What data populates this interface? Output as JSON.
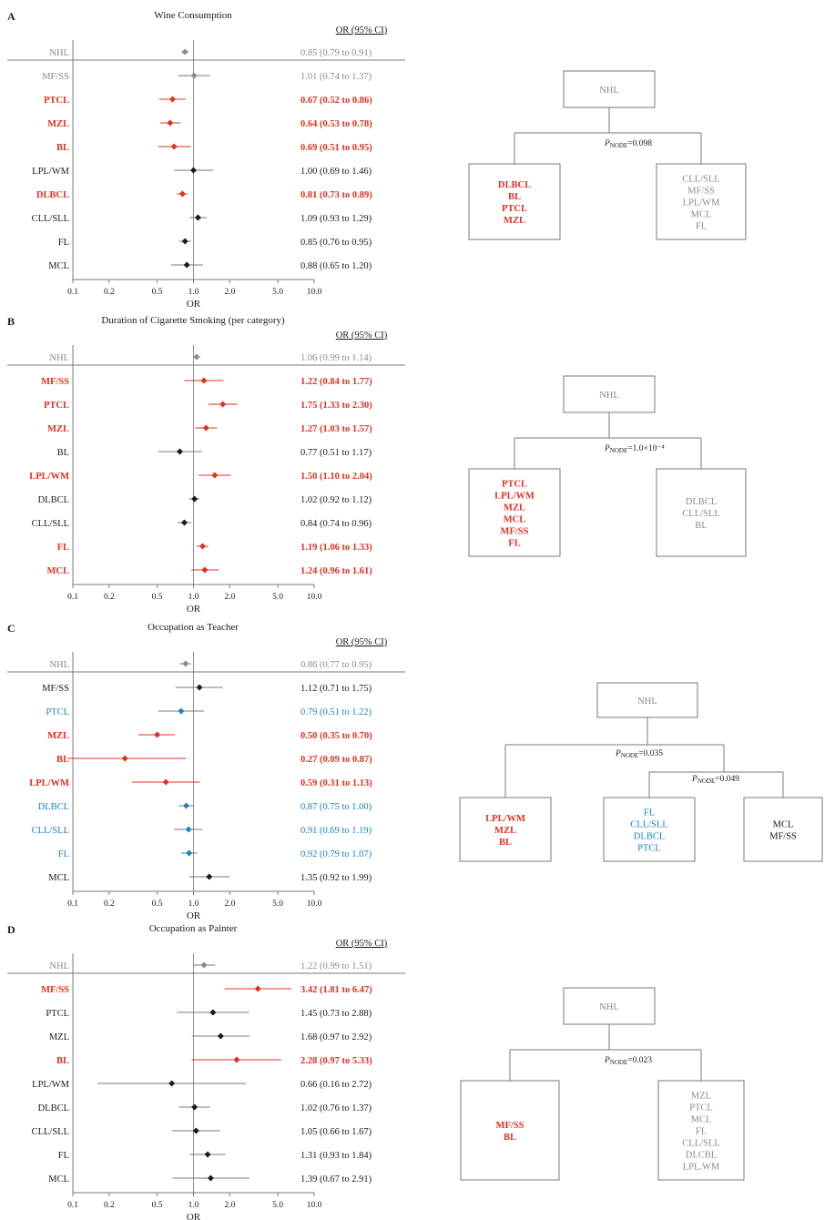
{
  "colors": {
    "red": "#e0301e",
    "blue": "#1a82c4",
    "black": "#1a1a1a",
    "gray": "#8a8a8a",
    "line": "#7a7a7a"
  },
  "axis": {
    "scale": "log",
    "ticks": [
      0.1,
      0.2,
      0.5,
      1.0,
      2.0,
      5.0,
      10.0
    ],
    "tick_labels": [
      "0.1",
      "0.2",
      "0.5",
      "1.0",
      "2.0",
      "5.0",
      "10.0"
    ],
    "xlabel": "OR"
  },
  "ci_header": "OR (95% CI)",
  "chart_data": [
    {
      "type": "forest",
      "panel": "A",
      "title": "Wine Consumption",
      "reference_line": 1.0,
      "rows": [
        {
          "label": "NHL",
          "or": 0.85,
          "lo": 0.79,
          "hi": 0.91,
          "ci_text": "0.85 (0.79 to 0.91)",
          "style": "gray"
        },
        {
          "label": "MF/SS",
          "or": 1.01,
          "lo": 0.74,
          "hi": 1.37,
          "ci_text": "1.01 (0.74 to 1.37)",
          "style": "gray"
        },
        {
          "label": "PTCL",
          "or": 0.67,
          "lo": 0.52,
          "hi": 0.86,
          "ci_text": "0.67 (0.52 to 0.86)",
          "style": "red"
        },
        {
          "label": "MZL",
          "or": 0.64,
          "lo": 0.53,
          "hi": 0.78,
          "ci_text": "0.64 (0.53 to 0.78)",
          "style": "red"
        },
        {
          "label": "BL",
          "or": 0.69,
          "lo": 0.51,
          "hi": 0.95,
          "ci_text": "0.69 (0.51 to 0.95)",
          "style": "red"
        },
        {
          "label": "LPL/WM",
          "or": 1.0,
          "lo": 0.69,
          "hi": 1.46,
          "ci_text": "1.00 (0.69 to 1.46)",
          "style": "black"
        },
        {
          "label": "DLBCL",
          "or": 0.81,
          "lo": 0.73,
          "hi": 0.89,
          "ci_text": "0.81 (0.73 to 0.89)",
          "style": "red"
        },
        {
          "label": "CLL/SLL",
          "or": 1.09,
          "lo": 0.93,
          "hi": 1.29,
          "ci_text": "1.09 (0.93 to 1.29)",
          "style": "black"
        },
        {
          "label": "FL",
          "or": 0.85,
          "lo": 0.76,
          "hi": 0.95,
          "ci_text": "0.85 (0.76 to 0.95)",
          "style": "black"
        },
        {
          "label": "MCL",
          "or": 0.88,
          "lo": 0.65,
          "hi": 1.2,
          "ci_text": "0.88 (0.65 to 1.20)",
          "style": "black"
        }
      ],
      "tree": {
        "root": "NHL",
        "splits": [
          {
            "parent": "NHL",
            "p_value": "=0.098"
          }
        ],
        "leaves": [
          {
            "items": [
              "DLBCL",
              "BL",
              "PTCL",
              "MZL"
            ],
            "style": "red"
          },
          {
            "items": [
              "CLL/SLL",
              "MF/SS",
              "LPL/WM",
              "MCL",
              "FL"
            ],
            "style": "gray"
          }
        ]
      }
    },
    {
      "type": "forest",
      "panel": "B",
      "title": "Duration of Cigarette Smoking (per category)",
      "reference_line": 1.0,
      "rows": [
        {
          "label": "NHL",
          "or": 1.06,
          "lo": 0.99,
          "hi": 1.14,
          "ci_text": "1.06 (0.99 to 1.14)",
          "style": "gray"
        },
        {
          "label": "MF/SS",
          "or": 1.22,
          "lo": 0.84,
          "hi": 1.77,
          "ci_text": "1.22 (0.84 to 1.77)",
          "style": "red"
        },
        {
          "label": "PTCL",
          "or": 1.75,
          "lo": 1.33,
          "hi": 2.3,
          "ci_text": "1.75 (1.33 to 2.30)",
          "style": "red"
        },
        {
          "label": "MZL",
          "or": 1.27,
          "lo": 1.03,
          "hi": 1.57,
          "ci_text": "1.27 (1.03 to 1.57)",
          "style": "red"
        },
        {
          "label": "BL",
          "or": 0.77,
          "lo": 0.51,
          "hi": 1.17,
          "ci_text": "0.77 (0.51 to 1.17)",
          "style": "black"
        },
        {
          "label": "LPL/WM",
          "or": 1.5,
          "lo": 1.1,
          "hi": 2.04,
          "ci_text": "1.50 (1.10 to 2.04)",
          "style": "red"
        },
        {
          "label": "DLBCL",
          "or": 1.02,
          "lo": 0.92,
          "hi": 1.12,
          "ci_text": "1.02 (0.92 to 1.12)",
          "style": "black"
        },
        {
          "label": "CLL/SLL",
          "or": 0.84,
          "lo": 0.74,
          "hi": 0.96,
          "ci_text": "0.84 (0.74 to 0.96)",
          "style": "black"
        },
        {
          "label": "FL",
          "or": 1.19,
          "lo": 1.06,
          "hi": 1.33,
          "ci_text": "1.19 (1.06 to 1.33)",
          "style": "red"
        },
        {
          "label": "MCL",
          "or": 1.24,
          "lo": 0.96,
          "hi": 1.61,
          "ci_text": "1.24 (0.96 to 1.61)",
          "style": "red"
        }
      ],
      "tree": {
        "root": "NHL",
        "splits": [
          {
            "parent": "NHL",
            "p_value": "=1.0×10⁻⁴"
          }
        ],
        "leaves": [
          {
            "items": [
              "PTCL",
              "LPL/WM",
              "MZL",
              "MCL",
              "MF/SS",
              "FL"
            ],
            "style": "red"
          },
          {
            "items": [
              "DLBCL",
              "CLL/SLL",
              "BL"
            ],
            "style": "gray"
          }
        ]
      }
    },
    {
      "type": "forest",
      "panel": "C",
      "title": "Occupation as Teacher",
      "reference_line": 1.0,
      "rows": [
        {
          "label": "NHL",
          "or": 0.86,
          "lo": 0.77,
          "hi": 0.95,
          "ci_text": "0.86 (0.77 to 0.95)",
          "style": "gray"
        },
        {
          "label": "MF/SS",
          "or": 1.12,
          "lo": 0.71,
          "hi": 1.75,
          "ci_text": "1.12 (0.71 to 1.75)",
          "style": "black"
        },
        {
          "label": "PTCL",
          "or": 0.79,
          "lo": 0.51,
          "hi": 1.22,
          "ci_text": "0.79 (0.51 to 1.22)",
          "style": "blue"
        },
        {
          "label": "MZL",
          "or": 0.5,
          "lo": 0.35,
          "hi": 0.7,
          "ci_text": "0.50 (0.35 to 0.70)",
          "style": "red"
        },
        {
          "label": "BL",
          "or": 0.27,
          "lo": 0.09,
          "hi": 0.87,
          "ci_text": "0.27 (0.09 to 0.87)",
          "style": "red"
        },
        {
          "label": "LPL/WM",
          "or": 0.59,
          "lo": 0.31,
          "hi": 1.13,
          "ci_text": "0.59 (0.31 to 1.13)",
          "style": "red"
        },
        {
          "label": "DLBCL",
          "or": 0.87,
          "lo": 0.75,
          "hi": 1.0,
          "ci_text": "0.87 (0.75 to 1.00)",
          "style": "blue"
        },
        {
          "label": "CLL/SLL",
          "or": 0.91,
          "lo": 0.69,
          "hi": 1.19,
          "ci_text": "0.91 (0.69 to 1.19)",
          "style": "blue"
        },
        {
          "label": "FL",
          "or": 0.92,
          "lo": 0.79,
          "hi": 1.07,
          "ci_text": "0.92 (0.79 to 1.07)",
          "style": "blue"
        },
        {
          "label": "MCL",
          "or": 1.35,
          "lo": 0.92,
          "hi": 1.99,
          "ci_text": "1.35 (0.92 to 1.99)",
          "style": "black"
        }
      ],
      "tree": {
        "root": "NHL",
        "splits": [
          {
            "parent": "NHL",
            "p_value": "=0.035"
          },
          {
            "parent": "right",
            "p_value": "=0.049"
          }
        ],
        "leaves": [
          {
            "items": [
              "LPL/WM",
              "MZL",
              "BL"
            ],
            "style": "red"
          },
          {
            "items": [
              "FL",
              "CLL/SLL",
              "DLBCL",
              "PTCL"
            ],
            "style": "blue"
          },
          {
            "items": [
              "MCL",
              "MF/SS"
            ],
            "style": "black"
          }
        ]
      }
    },
    {
      "type": "forest",
      "panel": "D",
      "title": "Occupation as Painter",
      "reference_line": 1.0,
      "rows": [
        {
          "label": "NHL",
          "or": 1.22,
          "lo": 0.99,
          "hi": 1.51,
          "ci_text": "1.22 (0.99 to 1.51)",
          "style": "gray"
        },
        {
          "label": "MF/SS",
          "or": 3.42,
          "lo": 1.81,
          "hi": 6.47,
          "ci_text": "3.42 (1.81 to 6.47)",
          "style": "red"
        },
        {
          "label": "PTCL",
          "or": 1.45,
          "lo": 0.73,
          "hi": 2.88,
          "ci_text": "1.45 (0.73 to 2.88)",
          "style": "black"
        },
        {
          "label": "MZL",
          "or": 1.68,
          "lo": 0.97,
          "hi": 2.92,
          "ci_text": "1.68 (0.97 to 2.92)",
          "style": "black"
        },
        {
          "label": "BL",
          "or": 2.28,
          "lo": 0.97,
          "hi": 5.33,
          "ci_text": "2.28 (0.97 to 5.33)",
          "style": "red"
        },
        {
          "label": "LPL/WM",
          "or": 0.66,
          "lo": 0.16,
          "hi": 2.72,
          "ci_text": "0.66 (0.16 to 2.72)",
          "style": "black"
        },
        {
          "label": "DLBCL",
          "or": 1.02,
          "lo": 0.76,
          "hi": 1.37,
          "ci_text": "1.02 (0.76 to 1.37)",
          "style": "black"
        },
        {
          "label": "CLL/SLL",
          "or": 1.05,
          "lo": 0.66,
          "hi": 1.67,
          "ci_text": "1.05 (0.66 to 1.67)",
          "style": "black"
        },
        {
          "label": "FL",
          "or": 1.31,
          "lo": 0.93,
          "hi": 1.84,
          "ci_text": "1.31 (0.93 to 1.84)",
          "style": "black"
        },
        {
          "label": "MCL",
          "or": 1.39,
          "lo": 0.67,
          "hi": 2.91,
          "ci_text": "1.39 (0.67 to 2.91)",
          "style": "black"
        }
      ],
      "tree": {
        "root": "NHL",
        "splits": [
          {
            "parent": "NHL",
            "p_value": "=0.023"
          }
        ],
        "leaves": [
          {
            "items": [
              "MF/SS",
              "BL"
            ],
            "style": "red"
          },
          {
            "items": [
              "MZL",
              "PTCL",
              "MCL",
              "FL",
              "CLL/SLL",
              "DLCBL",
              "LPL.WM"
            ],
            "style": "gray"
          }
        ]
      }
    }
  ]
}
